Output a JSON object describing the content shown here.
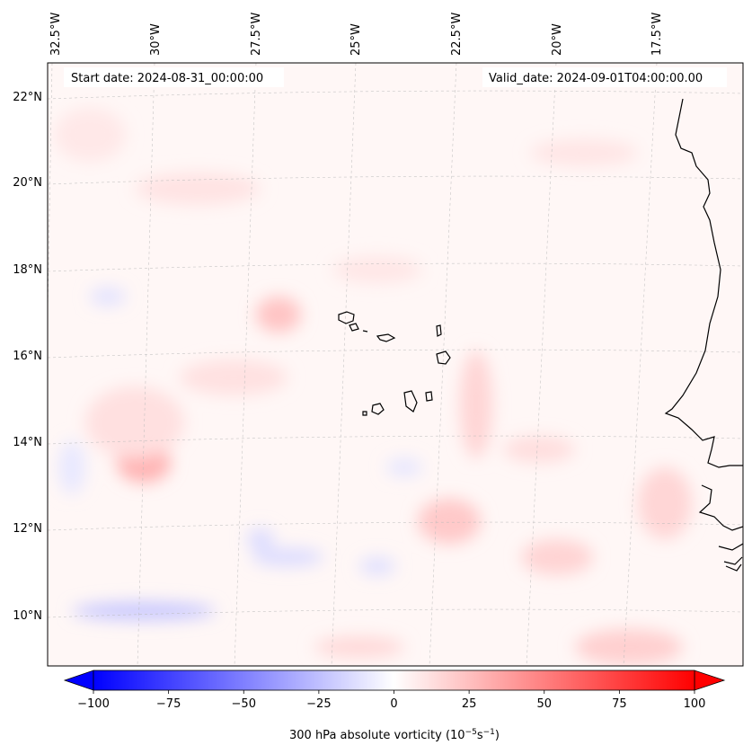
{
  "map": {
    "start_date": "Start date: 2024-08-31_00:00:00",
    "valid_date": "Valid_date: 2024-09-01T04:00:00.00",
    "lon_labels": [
      "32.5°W",
      "30°W",
      "27.5°W",
      "25°W",
      "22.5°W",
      "20°W",
      "17.5°W"
    ],
    "lat_labels": [
      "22°N",
      "20°N",
      "18°N",
      "16°N",
      "14°N",
      "12°N",
      "10°N"
    ],
    "gridlines": true,
    "field": "300 hPa absolute vorticity",
    "colors": {
      "negative": "#0000ff",
      "neutral": "#ffffff",
      "positive": "#ff0000",
      "coast": "#000000"
    }
  },
  "colorbar": {
    "label": "300 hPa absolute vorticity (10",
    "label_exp1": "−5",
    "label_mid": "s",
    "label_exp2": "−1",
    "label_end": ")",
    "min": -100,
    "max": 100,
    "ticks": [
      "−100",
      "−75",
      "−50",
      "−25",
      "0",
      "25",
      "50",
      "75",
      "100"
    ],
    "extend": "both"
  }
}
